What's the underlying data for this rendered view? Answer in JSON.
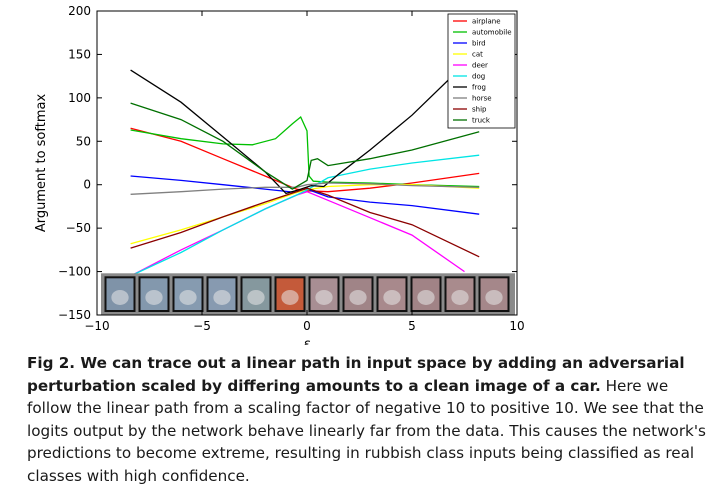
{
  "chart_data": {
    "type": "line",
    "xlabel": "ε",
    "ylabel": "Argument to softmax",
    "xlim": [
      -10,
      10
    ],
    "ylim": [
      -150,
      200
    ],
    "x_ticks": [
      -10,
      -5,
      0,
      5,
      10
    ],
    "y_ticks": [
      -150,
      -100,
      -50,
      0,
      50,
      100,
      150,
      200
    ],
    "grid": false,
    "legend_position": "top-right",
    "series": [
      {
        "name": "airplane",
        "color": "#ff0000",
        "points": [
          [
            -8.4,
            65
          ],
          [
            -6,
            50
          ],
          [
            -4,
            30
          ],
          [
            -2,
            10
          ],
          [
            -0.5,
            -5
          ],
          [
            0,
            -7
          ],
          [
            1,
            -8
          ],
          [
            3,
            -4
          ],
          [
            5,
            2
          ],
          [
            8.2,
            13
          ]
        ]
      },
      {
        "name": "automobile",
        "color": "#00c000",
        "points": [
          [
            -8.4,
            63
          ],
          [
            -6,
            53
          ],
          [
            -4,
            47
          ],
          [
            -2.6,
            46
          ],
          [
            -1.5,
            53
          ],
          [
            -0.7,
            70
          ],
          [
            -0.3,
            78
          ],
          [
            0,
            62
          ],
          [
            0.1,
            10
          ],
          [
            0.3,
            4
          ],
          [
            1,
            3
          ],
          [
            3,
            2
          ],
          [
            5,
            0
          ],
          [
            8.2,
            -2
          ]
        ]
      },
      {
        "name": "bird",
        "color": "#0000ff",
        "points": [
          [
            -8.4,
            10
          ],
          [
            -6,
            5
          ],
          [
            -4,
            0
          ],
          [
            -2,
            -5
          ],
          [
            -0.5,
            -9
          ],
          [
            0,
            -5
          ],
          [
            1,
            -14
          ],
          [
            3,
            -20
          ],
          [
            5,
            -24
          ],
          [
            8.2,
            -34
          ]
        ]
      },
      {
        "name": "cat",
        "color": "#ffff00",
        "points": [
          [
            -8.4,
            -68
          ],
          [
            -6,
            -52
          ],
          [
            -4,
            -37
          ],
          [
            -2,
            -22
          ],
          [
            -0.5,
            -9
          ],
          [
            0,
            -6
          ],
          [
            1,
            -2
          ],
          [
            3,
            0
          ],
          [
            5,
            0
          ],
          [
            8.2,
            -4
          ]
        ]
      },
      {
        "name": "deer",
        "color": "#ff00ff",
        "points": [
          [
            -8.4,
            -105
          ],
          [
            -6,
            -75
          ],
          [
            -4,
            -52
          ],
          [
            -2,
            -28
          ],
          [
            -0.5,
            -12
          ],
          [
            0,
            -8
          ],
          [
            1,
            -18
          ],
          [
            3,
            -38
          ],
          [
            5,
            -58
          ],
          [
            7.5,
            -100
          ]
        ]
      },
      {
        "name": "dog",
        "color": "#00e5e5",
        "points": [
          [
            -8.4,
            -105
          ],
          [
            -6,
            -78
          ],
          [
            -4,
            -52
          ],
          [
            -2,
            -28
          ],
          [
            -0.5,
            -12
          ],
          [
            0,
            -6
          ],
          [
            1,
            8
          ],
          [
            3,
            18
          ],
          [
            5,
            25
          ],
          [
            8.2,
            34
          ]
        ]
      },
      {
        "name": "frog",
        "color": "#000000",
        "points": [
          [
            -8.4,
            132
          ],
          [
            -6,
            95
          ],
          [
            -4,
            55
          ],
          [
            -2,
            15
          ],
          [
            -1,
            -10
          ],
          [
            -0.4,
            -6
          ],
          [
            0.2,
            -1
          ],
          [
            0.8,
            -2
          ],
          [
            1.5,
            12
          ],
          [
            3,
            40
          ],
          [
            5,
            80
          ],
          [
            8.2,
            155
          ]
        ]
      },
      {
        "name": "horse",
        "color": "#808080",
        "points": [
          [
            -8.4,
            -11
          ],
          [
            -6,
            -8
          ],
          [
            -4,
            -5
          ],
          [
            -2,
            -3
          ],
          [
            -0.5,
            -3
          ],
          [
            0,
            0
          ],
          [
            1,
            2
          ],
          [
            3,
            1
          ],
          [
            5,
            -1
          ],
          [
            8.2,
            -3
          ]
        ]
      },
      {
        "name": "ship",
        "color": "#8b0000",
        "points": [
          [
            -8.4,
            -73
          ],
          [
            -6,
            -55
          ],
          [
            -4,
            -37
          ],
          [
            -2,
            -20
          ],
          [
            -0.5,
            -8
          ],
          [
            0,
            -4
          ],
          [
            1,
            -12
          ],
          [
            3,
            -32
          ],
          [
            5,
            -46
          ],
          [
            8.2,
            -83
          ]
        ]
      },
      {
        "name": "truck",
        "color": "#007000",
        "points": [
          [
            -8.4,
            94
          ],
          [
            -6,
            75
          ],
          [
            -4,
            50
          ],
          [
            -2,
            15
          ],
          [
            -0.7,
            -5
          ],
          [
            0,
            5
          ],
          [
            0.2,
            28
          ],
          [
            0.5,
            30
          ],
          [
            1,
            22
          ],
          [
            3,
            30
          ],
          [
            5,
            40
          ],
          [
            8.2,
            61
          ]
        ]
      }
    ],
    "image_strip_count": 12,
    "image_strip_tints": [
      "#7f93a8",
      "#8398ad",
      "#869bb0",
      "#879ab0",
      "#85989e",
      "#c45a3a",
      "#a88e93",
      "#a08487",
      "#a8898c",
      "#a18386",
      "#a98b8d",
      "#a5878a"
    ]
  },
  "caption": {
    "lead": "Fig 2. We can trace out a linear path in input space by adding an adversarial perturbation scaled by differing amounts to a clean image of a car.",
    "body": " Here we follow the linear path from a scaling factor of negative 10 to positive 10. We see that the logits output by the network behave linearly far from the data. This causes the network's predictions to become extreme, resulting in rubbish class inputs being classified as real classes with high confidence."
  }
}
